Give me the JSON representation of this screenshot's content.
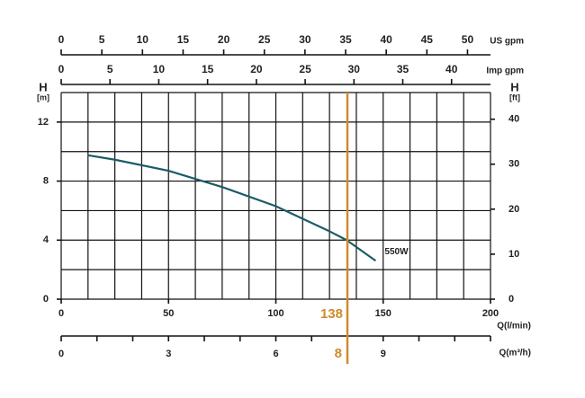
{
  "chart_data": {
    "type": "line",
    "series": [
      {
        "name": "550W",
        "color": "#1a5c66",
        "x": [
          12.5,
          25,
          50,
          75,
          100,
          125,
          133,
          146.5
        ],
        "values": [
          9.75,
          9.45,
          8.7,
          7.6,
          6.3,
          4.6,
          4.0,
          2.6
        ]
      }
    ],
    "xlabel": "Q(l/min)",
    "xlim": [
      0,
      200
    ],
    "xticks": [
      0,
      50,
      100,
      150,
      200
    ],
    "ylabel": "H",
    "yunit": "[m]",
    "ylim": [
      0,
      14
    ],
    "yticks": [
      0,
      4,
      8,
      12
    ],
    "y2label": "H",
    "y2unit": "[ft]",
    "y2lim": [
      0,
      45.93
    ],
    "y2ticks": [
      0,
      10,
      20,
      30,
      40
    ],
    "grid": true,
    "xgrid_step": 12.5,
    "ygrid_step": 2,
    "top_axes": [
      {
        "label": "US gpm",
        "lim": [
          0,
          52.83
        ],
        "ticks": [
          0,
          5,
          10,
          15,
          20,
          25,
          30,
          35,
          40,
          45,
          50
        ]
      },
      {
        "label": "Imp gpm",
        "lim": [
          0,
          43.99
        ],
        "ticks": [
          0,
          5,
          10,
          15,
          20,
          25,
          30,
          35,
          40
        ]
      }
    ],
    "bottom_axis2": {
      "label": "Q(m³/h)",
      "lim": [
        0,
        12
      ],
      "ticks": [
        0,
        3,
        6,
        9
      ],
      "minor_step": 1
    },
    "marker": {
      "q_lmin": 138,
      "q_m3h": 8,
      "color": "#d08a2a"
    }
  }
}
